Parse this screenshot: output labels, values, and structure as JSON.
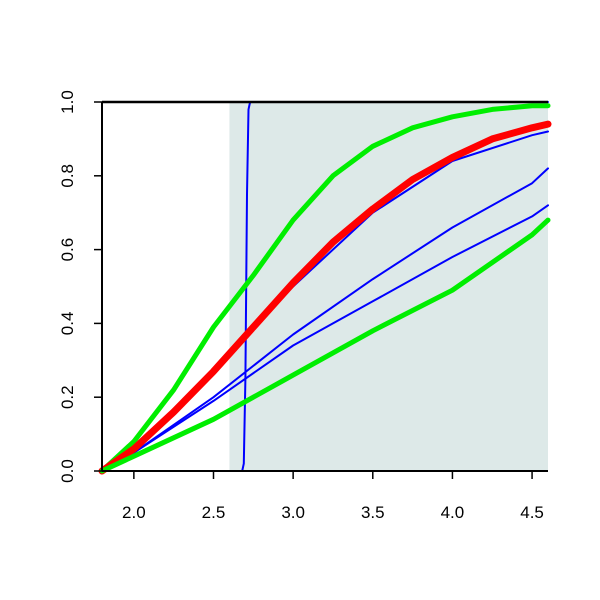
{
  "chart_data": {
    "type": "line",
    "title": "",
    "xlabel": "",
    "ylabel": "",
    "xlim": [
      1.8,
      4.6
    ],
    "ylim": [
      0.0,
      1.0
    ],
    "grid": false,
    "legend": "none",
    "x_ticks": [
      "2.0",
      "2.5",
      "3.0",
      "3.5",
      "4.0",
      "4.5"
    ],
    "y_ticks": [
      "0.0",
      "0.2",
      "0.4",
      "0.6",
      "0.8",
      "1.0"
    ],
    "shaded_region": {
      "x_from": 2.6,
      "x_to": 4.6,
      "color": "#dde9e8"
    },
    "series": [
      {
        "color": "#0000ff",
        "style": "step",
        "x": [
          1.8,
          2.68,
          2.69,
          2.7,
          2.71,
          2.72,
          2.73,
          4.6
        ],
        "y": [
          0.0,
          0.0,
          0.02,
          0.25,
          0.75,
          0.98,
          1.0,
          1.0
        ]
      },
      {
        "color": "#0000ff",
        "x": [
          1.8,
          2.0,
          2.5,
          3.0,
          3.5,
          4.0,
          4.5,
          4.6
        ],
        "y": [
          0.0,
          0.06,
          0.27,
          0.5,
          0.7,
          0.84,
          0.91,
          0.92
        ]
      },
      {
        "color": "#0000ff",
        "x": [
          1.8,
          2.0,
          2.5,
          3.0,
          3.5,
          4.0,
          4.5,
          4.6
        ],
        "y": [
          0.0,
          0.05,
          0.2,
          0.37,
          0.52,
          0.66,
          0.78,
          0.82
        ]
      },
      {
        "color": "#0000ff",
        "x": [
          1.8,
          2.0,
          2.5,
          3.0,
          3.5,
          4.0,
          4.5,
          4.6
        ],
        "y": [
          0.0,
          0.05,
          0.19,
          0.34,
          0.46,
          0.58,
          0.69,
          0.72
        ]
      },
      {
        "color": "#00ee00",
        "x": [
          1.8,
          2.0,
          2.25,
          2.5,
          2.75,
          3.0,
          3.25,
          3.5,
          3.75,
          4.0,
          4.25,
          4.5,
          4.6
        ],
        "y": [
          0.0,
          0.08,
          0.22,
          0.39,
          0.53,
          0.68,
          0.8,
          0.88,
          0.93,
          0.96,
          0.98,
          0.99,
          0.99
        ]
      },
      {
        "color": "#ff0000",
        "x": [
          1.8,
          2.0,
          2.25,
          2.5,
          2.75,
          3.0,
          3.25,
          3.5,
          3.75,
          4.0,
          4.25,
          4.5,
          4.6
        ],
        "y": [
          0.0,
          0.06,
          0.16,
          0.27,
          0.39,
          0.51,
          0.62,
          0.71,
          0.79,
          0.85,
          0.9,
          0.93,
          0.94
        ]
      },
      {
        "color": "#00ee00",
        "x": [
          1.8,
          2.0,
          2.5,
          3.0,
          3.5,
          4.0,
          4.5,
          4.6
        ],
        "y": [
          0.0,
          0.04,
          0.14,
          0.26,
          0.38,
          0.49,
          0.64,
          0.68
        ]
      }
    ]
  }
}
